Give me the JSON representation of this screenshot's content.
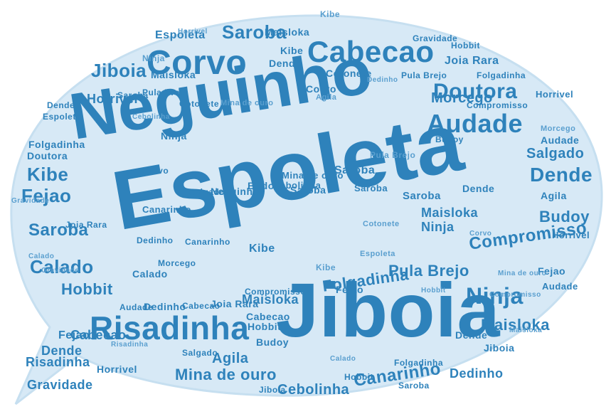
{
  "colors": {
    "bubble": "#d7e9f6",
    "bubble_edge": "#c6dff0",
    "word_dark": "#2e82bb",
    "word_light": "#5a9fcf"
  },
  "words": [
    "Espoleta",
    "Neguinho",
    "Jiboia",
    "Risadinha",
    "Corvo",
    "Cabecao",
    "Audade",
    "Doutora",
    "Saroba",
    "Ninja",
    "Dende",
    "Kibe",
    "Fejao",
    "Calado",
    "Hobbit",
    "Cebolinha",
    "Canarinho",
    "Mina de ouro",
    "Compromisso",
    "Pula Brejo",
    "Budoy",
    "Gravidade",
    "Agila",
    "Maisloka",
    "Folgadinha",
    "Morcego",
    "Horrivel",
    "Salgado",
    "Dedinho",
    "Cotonete",
    "Joia Rara"
  ]
}
